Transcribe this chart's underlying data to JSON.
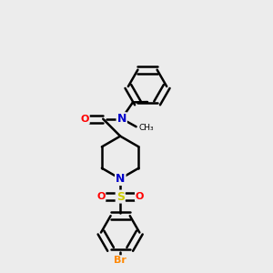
{
  "bg_color": "#ececec",
  "bond_color": "#000000",
  "atom_colors": {
    "O": "#ff0000",
    "N": "#0000cc",
    "S": "#cccc00",
    "Br": "#ff8800"
  },
  "bond_width": 1.8,
  "dbo": 0.012,
  "s": 0.075
}
